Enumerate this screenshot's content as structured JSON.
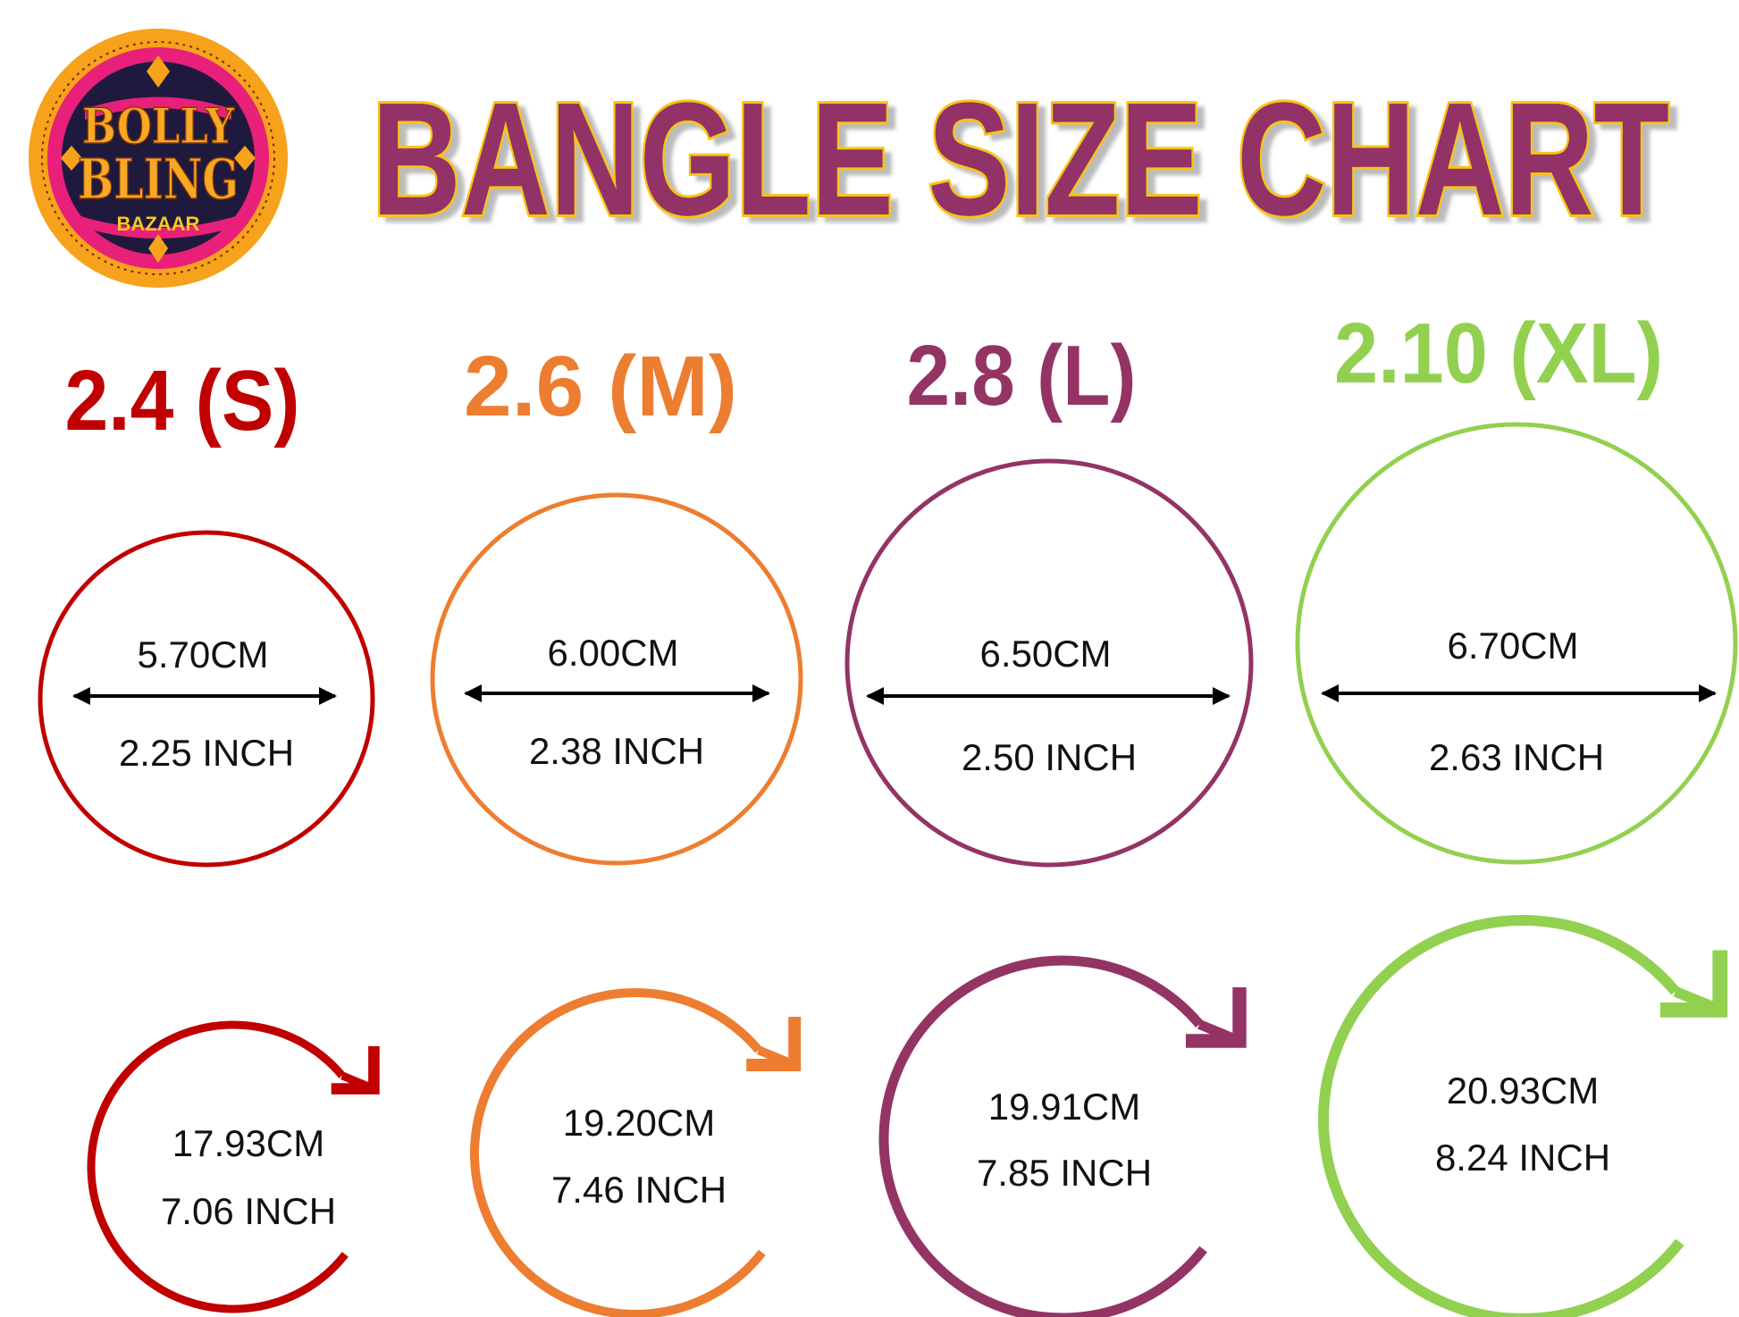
{
  "logo": {
    "line1": "BOLLY",
    "line2": "BLING",
    "line3": "BAZAAR",
    "colors": {
      "ring": "#f7a21b",
      "inner": "#1f1a3d",
      "accent": "#e8207a",
      "letters": "#f9a825"
    }
  },
  "title": {
    "text": "BANGLE SIZE CHART",
    "fill": "#933166",
    "outline": "#f5c518"
  },
  "sizes": [
    {
      "label": "2.4 (S)",
      "color": "#c00000",
      "diameter_cm": "5.70CM",
      "diameter_inch": "2.25 INCH",
      "circumference_cm": "17.93CM",
      "circumference_inch": "7.06 INCH"
    },
    {
      "label": "2.6 (M)",
      "color": "#ed7d31",
      "diameter_cm": "6.00CM",
      "diameter_inch": "2.38 INCH",
      "circumference_cm": "19.20CM",
      "circumference_inch": "7.46 INCH"
    },
    {
      "label": "2.8 (L)",
      "color": "#933465",
      "diameter_cm": "6.50CM",
      "diameter_inch": "2.50 INCH",
      "circumference_cm": "19.91CM",
      "circumference_inch": "7.85 INCH"
    },
    {
      "label": "2.10 (XL)",
      "color": "#92d050",
      "diameter_cm": "6.70CM",
      "diameter_inch": "2.63 INCH",
      "circumference_cm": "20.93CM",
      "circumference_inch": "8.24 INCH"
    }
  ]
}
